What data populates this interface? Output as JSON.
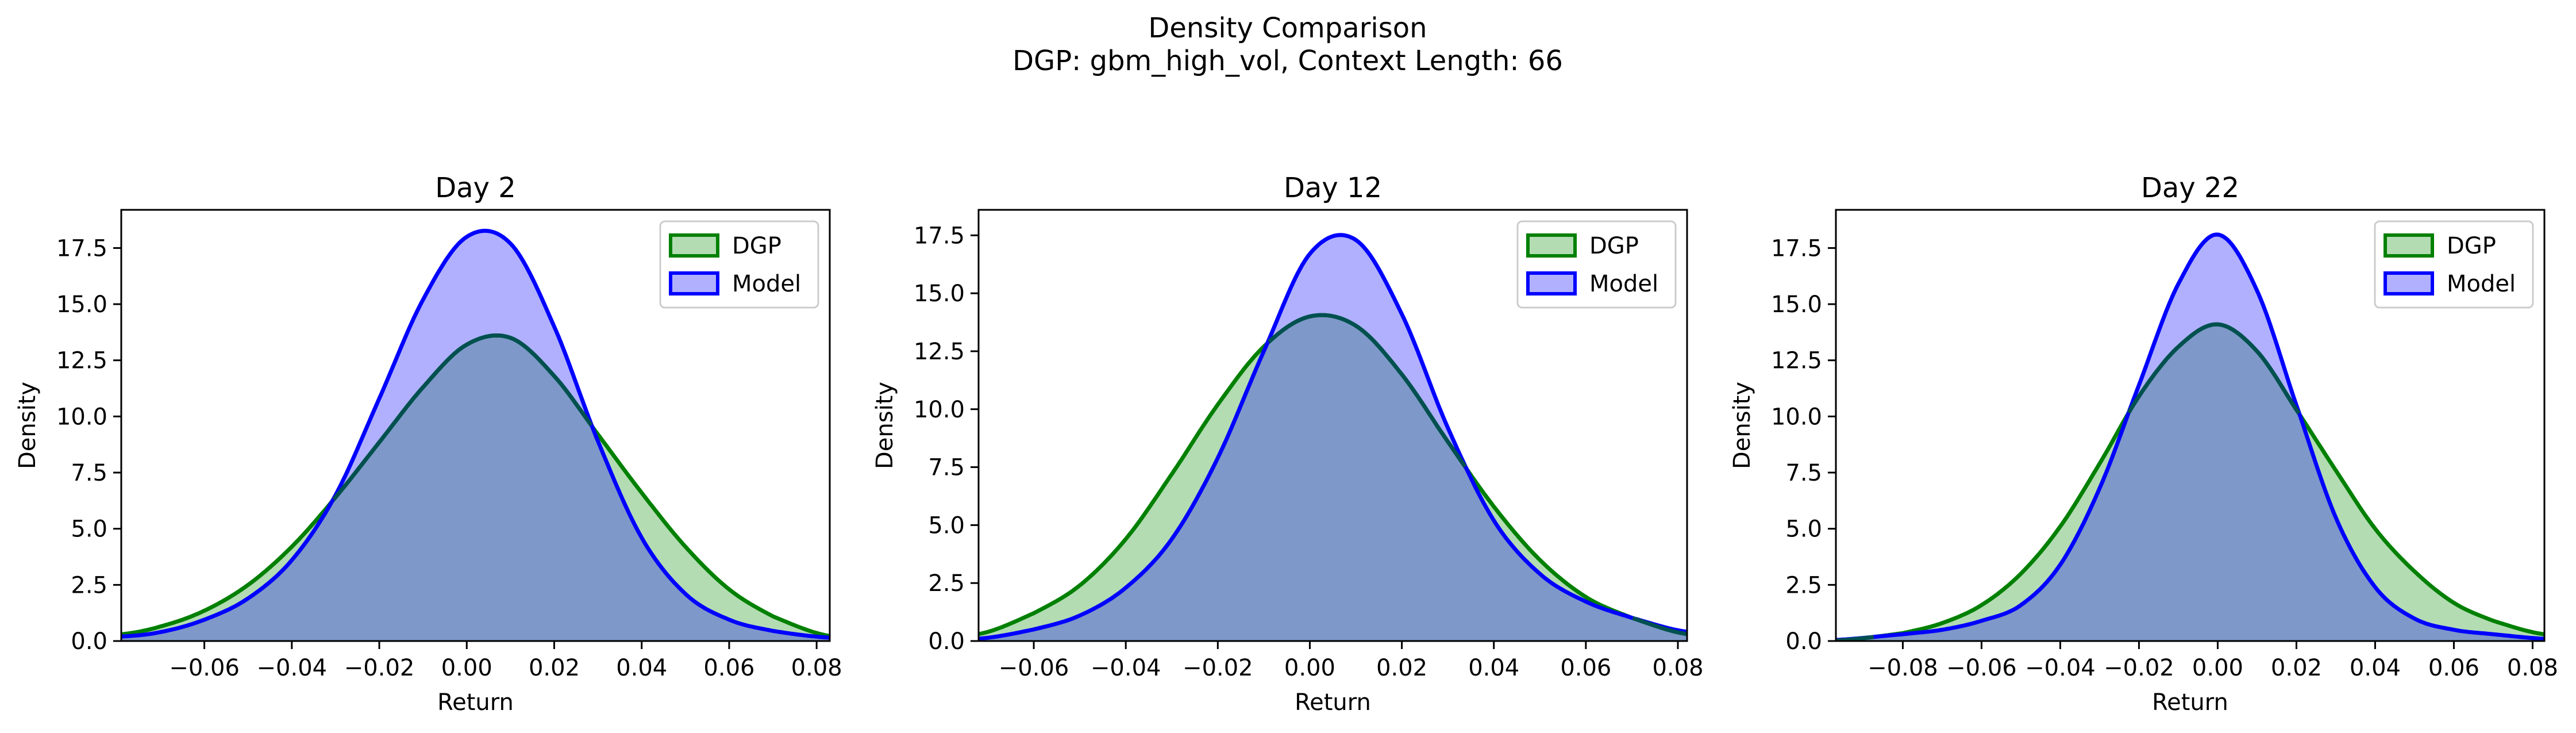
{
  "figure": {
    "title_line1": "Density Comparison",
    "title_line2": "DGP: gbm_high_vol, Context Length: 66"
  },
  "colors": {
    "dgp_line": "#008000",
    "dgp_fill": "#b3dcb3",
    "model_line": "#0000ff",
    "model_fill": "#b0b0ff",
    "overlap_fill": "#7e98c9",
    "overlap_line": "#005050"
  },
  "chart_data": [
    {
      "type": "area",
      "title": "Day 2",
      "xlabel": "Return",
      "ylabel": "Density",
      "xlim": [
        -0.079,
        0.083
      ],
      "ylim": [
        0,
        19.2
      ],
      "xticks": [
        -0.06,
        -0.04,
        -0.02,
        0.0,
        0.02,
        0.04,
        0.06,
        0.08
      ],
      "xtick_labels": [
        "−0.06",
        "−0.04",
        "−0.02",
        "0.00",
        "0.02",
        "0.04",
        "0.06",
        "0.08"
      ],
      "yticks": [
        0,
        2.5,
        5,
        7.5,
        10,
        12.5,
        15,
        17.5
      ],
      "ytick_labels": [
        "0.0",
        "2.5",
        "5.0",
        "7.5",
        "10.0",
        "12.5",
        "15.0",
        "17.5"
      ],
      "legend": [
        "DGP",
        "Model"
      ],
      "legend_position": "top-right",
      "series": [
        {
          "name": "DGP",
          "x": [
            -0.079,
            -0.07,
            -0.06,
            -0.05,
            -0.04,
            -0.03,
            -0.02,
            -0.01,
            0.0,
            0.01,
            0.02,
            0.03,
            0.04,
            0.05,
            0.06,
            0.07,
            0.083
          ],
          "y": [
            0.3,
            0.65,
            1.35,
            2.5,
            4.2,
            6.4,
            8.85,
            11.3,
            13.2,
            13.5,
            11.8,
            9.2,
            6.6,
            4.2,
            2.3,
            1.1,
            0.22
          ]
        },
        {
          "name": "Model",
          "x": [
            -0.079,
            -0.07,
            -0.06,
            -0.05,
            -0.04,
            -0.03,
            -0.02,
            -0.01,
            0.0,
            0.01,
            0.02,
            0.03,
            0.04,
            0.05,
            0.06,
            0.07,
            0.083
          ],
          "y": [
            0.2,
            0.4,
            0.95,
            1.9,
            3.6,
            6.5,
            10.8,
            15.2,
            18.0,
            17.7,
            14.0,
            8.9,
            4.6,
            2.1,
            0.95,
            0.45,
            0.15
          ]
        }
      ]
    },
    {
      "type": "area",
      "title": "Day 12",
      "xlabel": "Return",
      "ylabel": "Density",
      "xlim": [
        -0.072,
        0.082
      ],
      "ylim": [
        0,
        18.6
      ],
      "xticks": [
        -0.06,
        -0.04,
        -0.02,
        0.0,
        0.02,
        0.04,
        0.06,
        0.08
      ],
      "xtick_labels": [
        "−0.06",
        "−0.04",
        "−0.02",
        "0.00",
        "0.02",
        "0.04",
        "0.06",
        "0.08"
      ],
      "yticks": [
        0,
        2.5,
        5,
        7.5,
        10,
        12.5,
        15,
        17.5
      ],
      "ytick_labels": [
        "0.0",
        "2.5",
        "5.0",
        "7.5",
        "10.0",
        "12.5",
        "15.0",
        "17.5"
      ],
      "legend": [
        "DGP",
        "Model"
      ],
      "legend_position": "top-right",
      "series": [
        {
          "name": "DGP",
          "x": [
            -0.072,
            -0.06,
            -0.05,
            -0.04,
            -0.03,
            -0.02,
            -0.01,
            0.0,
            0.01,
            0.02,
            0.03,
            0.04,
            0.05,
            0.06,
            0.07,
            0.082
          ],
          "y": [
            0.3,
            1.2,
            2.4,
            4.4,
            7.2,
            10.2,
            12.7,
            14.0,
            13.6,
            11.5,
            8.6,
            5.8,
            3.5,
            1.9,
            1.0,
            0.3
          ]
        },
        {
          "name": "Model",
          "x": [
            -0.072,
            -0.06,
            -0.05,
            -0.04,
            -0.03,
            -0.02,
            -0.01,
            0.0,
            0.01,
            0.02,
            0.03,
            0.04,
            0.05,
            0.06,
            0.07,
            0.082
          ],
          "y": [
            0.1,
            0.5,
            1.1,
            2.3,
            4.4,
            7.9,
            12.5,
            16.7,
            17.3,
            14.1,
            9.2,
            5.2,
            2.9,
            1.7,
            1.0,
            0.4
          ]
        }
      ]
    },
    {
      "type": "area",
      "title": "Day 22",
      "xlabel": "Return",
      "ylabel": "Density",
      "xlim": [
        -0.097,
        0.083
      ],
      "ylim": [
        0,
        19.2
      ],
      "xticks": [
        -0.08,
        -0.06,
        -0.04,
        -0.02,
        0.0,
        0.02,
        0.04,
        0.06,
        0.08
      ],
      "xtick_labels": [
        "−0.08",
        "−0.06",
        "−0.04",
        "−0.02",
        "0.00",
        "0.02",
        "0.04",
        "0.06",
        "0.08"
      ],
      "yticks": [
        0,
        2.5,
        5,
        7.5,
        10,
        12.5,
        15,
        17.5
      ],
      "ytick_labels": [
        "0.0",
        "2.5",
        "5.0",
        "7.5",
        "10.0",
        "12.5",
        "15.0",
        "17.5"
      ],
      "legend": [
        "DGP",
        "Model"
      ],
      "legend_position": "top-right",
      "series": [
        {
          "name": "DGP",
          "x": [
            -0.097,
            -0.08,
            -0.07,
            -0.06,
            -0.05,
            -0.04,
            -0.03,
            -0.02,
            -0.01,
            0.0,
            0.01,
            0.02,
            0.03,
            0.04,
            0.05,
            0.06,
            0.07,
            0.083
          ],
          "y": [
            0.02,
            0.35,
            0.8,
            1.6,
            3.0,
            5.1,
            7.9,
            10.9,
            13.1,
            14.1,
            12.9,
            10.3,
            7.6,
            5.0,
            3.1,
            1.7,
            0.9,
            0.3
          ]
        },
        {
          "name": "Model",
          "x": [
            -0.097,
            -0.08,
            -0.07,
            -0.06,
            -0.05,
            -0.04,
            -0.03,
            -0.02,
            -0.01,
            0.0,
            0.01,
            0.02,
            0.03,
            0.04,
            0.05,
            0.06,
            0.07,
            0.083
          ],
          "y": [
            0.05,
            0.3,
            0.5,
            0.9,
            1.6,
            3.4,
            6.8,
            11.4,
            15.9,
            18.1,
            15.6,
            10.5,
            5.5,
            2.4,
            1.0,
            0.5,
            0.3,
            0.1
          ]
        }
      ]
    }
  ]
}
